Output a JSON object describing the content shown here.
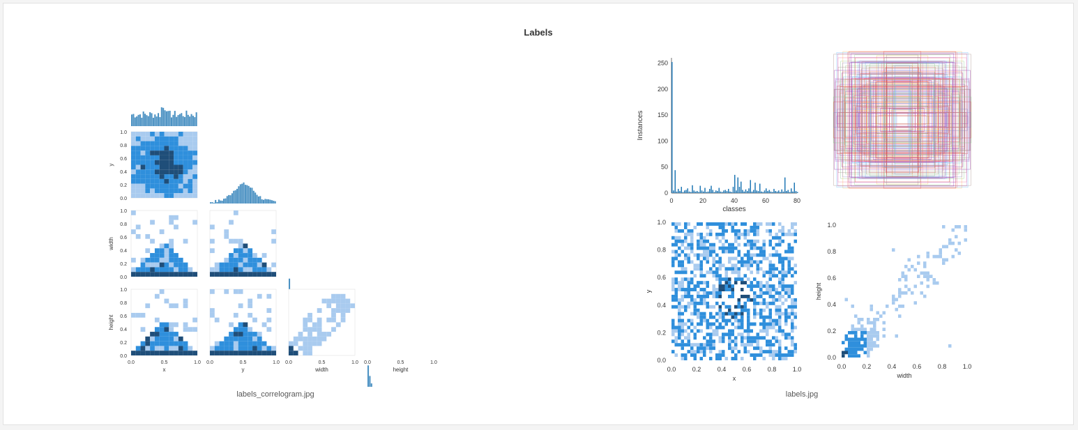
{
  "panel": {
    "title": "Labels",
    "left_caption": "labels_correlogram.jpg",
    "right_caption": "labels.jpg"
  },
  "colors": {
    "hist_bar": "#1f77b4",
    "heat_dark": "#1f4e79",
    "heat_mid": "#2f8fdc",
    "heat_light": "#a9cbef"
  },
  "correlogram": {
    "vars": [
      "x",
      "y",
      "width",
      "height"
    ],
    "row_labels": [
      "y",
      "width",
      "height"
    ],
    "tick_labels": [
      "0.0",
      "0.2",
      "0.4",
      "0.6",
      "0.8",
      "1.0"
    ],
    "bottom_tick_labels": [
      "0.0",
      "0.5",
      "1.0"
    ]
  },
  "chart_data": [
    {
      "type": "bar",
      "xlabel": "classes",
      "ylabel": "Instances",
      "ylim": [
        0,
        260
      ],
      "xlim": [
        0,
        80
      ],
      "x_ticks": [
        0,
        20,
        40,
        60,
        80
      ],
      "y_ticks": [
        0,
        50,
        100,
        150,
        200,
        250
      ],
      "values": [
        252,
        5,
        44,
        3,
        8,
        4,
        12,
        2,
        5,
        6,
        9,
        3,
        2,
        15,
        5,
        3,
        4,
        2,
        14,
        5,
        3,
        10,
        2,
        3,
        8,
        14,
        6,
        2,
        5,
        4,
        10,
        3,
        2,
        5,
        6,
        4,
        8,
        3,
        2,
        12,
        35,
        5,
        30,
        12,
        22,
        6,
        3,
        7,
        4,
        9,
        25,
        3,
        6,
        20,
        5,
        4,
        18,
        3,
        2,
        5,
        9,
        4,
        6,
        3,
        2,
        8,
        4,
        3,
        5,
        2,
        7,
        3,
        30,
        4,
        6,
        2,
        9,
        3,
        20,
        4,
        2
      ]
    },
    {
      "type": "heatmap",
      "xlabel": "x",
      "ylabel": "y",
      "xlim": [
        0,
        1
      ],
      "ylim": [
        0,
        1
      ],
      "x_ticks": [
        "0.0",
        "0.2",
        "0.4",
        "0.6",
        "0.8",
        "1.0"
      ],
      "y_ticks": [
        "0.0",
        "0.2",
        "0.4",
        "0.6",
        "0.8",
        "1.0"
      ]
    },
    {
      "type": "heatmap",
      "xlabel": "width",
      "ylabel": "height",
      "xlim": [
        0,
        1
      ],
      "ylim": [
        0,
        1
      ],
      "x_ticks": [
        "0.0",
        "0.2",
        "0.4",
        "0.6",
        "0.8",
        "1.0"
      ],
      "y_ticks": [
        "0.0",
        "0.2",
        "0.4",
        "0.6",
        "0.8",
        "1.0"
      ]
    }
  ]
}
